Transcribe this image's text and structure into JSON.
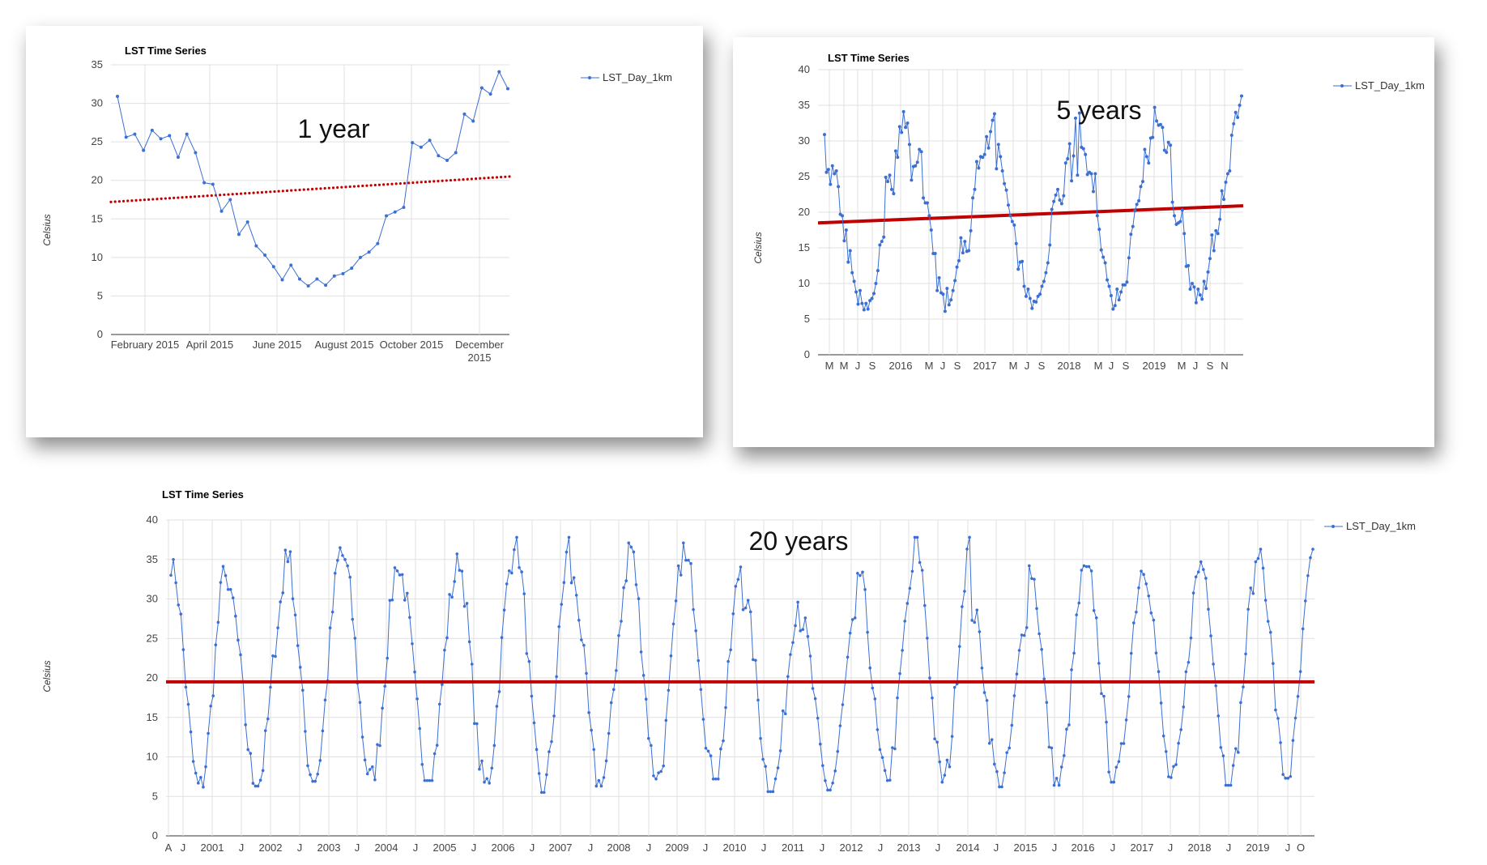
{
  "charts": [
    {
      "title": "LST Time Series",
      "ylabel": "Celsius",
      "legend": "LST_Day_1km",
      "annotation": "1 year",
      "yticks": [
        "0",
        "5",
        "10",
        "15",
        "20",
        "25",
        "30",
        "35"
      ],
      "xticks": [
        "February 2015",
        "April 2015",
        "June 2015",
        "August 2015",
        "October 2015",
        "December 2015"
      ]
    },
    {
      "title": "LST Time Series",
      "ylabel": "Celsius",
      "legend": "LST_Day_1km",
      "annotation": "5 years",
      "yticks": [
        "0",
        "5",
        "10",
        "15",
        "20",
        "25",
        "30",
        "35",
        "40"
      ],
      "xticks": [
        "M",
        "M",
        "J",
        "S",
        "2016",
        "M",
        "J",
        "S",
        "2017",
        "M",
        "J",
        "S",
        "2018",
        "M",
        "J",
        "S",
        "2019",
        "M",
        "J",
        "S",
        "N"
      ]
    },
    {
      "title": "LST Time Series",
      "ylabel": "Celsius",
      "legend": "LST_Day_1km",
      "annotation": "20 years",
      "yticks": [
        "0",
        "5",
        "10",
        "15",
        "20",
        "25",
        "30",
        "35",
        "40"
      ],
      "xticks": [
        "A",
        "J",
        "2001",
        "J",
        "2002",
        "J",
        "2003",
        "J",
        "2004",
        "J",
        "2005",
        "J",
        "2006",
        "J",
        "2007",
        "J",
        "2008",
        "J",
        "2009",
        "J",
        "2010",
        "J",
        "2011",
        "J",
        "2012",
        "J",
        "2013",
        "J",
        "2014",
        "J",
        "2015",
        "J",
        "2016",
        "J",
        "2017",
        "J",
        "2018",
        "J",
        "2019",
        "J",
        "O"
      ]
    }
  ],
  "chart_data": [
    {
      "type": "line",
      "title": "LST Time Series",
      "ylabel": "Celsius",
      "ylim": [
        0,
        35
      ],
      "x_start": "2015-01-01",
      "x_end": "2015-12-31",
      "series": [
        {
          "name": "LST_Day_1km",
          "values": [
            30.9,
            25.6,
            26.0,
            23.9,
            26.5,
            25.4,
            25.8,
            23.0,
            26.0,
            23.6,
            19.7,
            19.5,
            16.0,
            17.5,
            13.0,
            14.6,
            11.5,
            10.3,
            8.8,
            7.1,
            9.0,
            7.2,
            6.3,
            7.2,
            6.4,
            7.6,
            7.9,
            8.6,
            10.0,
            10.7,
            11.8,
            15.4,
            15.9,
            16.5,
            24.9,
            24.3,
            25.2,
            23.2,
            22.6,
            23.6,
            28.6,
            27.7,
            32.0,
            31.2,
            34.1,
            31.9
          ]
        },
        {
          "name": "trend",
          "values": [
            17.2,
            20.5
          ]
        }
      ]
    },
    {
      "type": "line",
      "title": "LST Time Series",
      "ylabel": "Celsius",
      "ylim": [
        0,
        40
      ],
      "x_start": "2015-01-01",
      "x_end": "2019-12-31",
      "series": [
        {
          "name": "LST_Day_1km",
          "values": [
            30.9,
            25.6,
            26.0,
            23.9,
            26.5,
            25.4,
            25.8,
            23.6,
            19.7,
            19.5,
            16.0,
            17.5,
            13.0,
            14.6,
            11.5,
            10.3,
            8.8,
            7.1,
            9.0,
            7.2,
            6.3,
            7.2,
            6.4,
            7.6,
            7.9,
            8.6,
            10.0,
            11.8,
            15.4,
            15.9,
            16.5,
            24.9,
            24.3,
            25.2,
            23.2,
            22.6,
            28.6,
            27.7,
            32.0,
            31.2,
            34.1,
            31.9,
            32.5,
            29.5,
            24.5,
            26.4,
            26.5,
            27.0,
            28.8,
            28.5,
            22.0,
            21.3,
            21.3,
            19.5,
            17.5,
            14.2,
            14.2,
            9.0,
            10.8,
            8.7,
            8.5,
            6.1,
            9.3,
            7.0,
            7.7,
            9.0,
            10.4,
            12.3,
            13.2,
            16.4,
            14.3,
            15.9,
            14.5,
            14.6,
            17.4,
            22.0,
            23.2,
            27.1,
            26.2,
            27.8,
            27.7,
            28.1,
            30.6,
            29.0,
            31.3,
            32.9,
            33.8,
            26.1,
            29.5,
            27.8,
            25.8,
            24.0,
            23.1,
            21.0,
            19.5,
            18.7,
            18.2,
            15.6,
            12.0,
            13.0,
            13.1,
            9.6,
            8.2,
            9.2,
            7.9,
            6.5,
            7.5,
            7.4,
            8.2,
            8.5,
            9.6,
            10.3,
            11.5,
            12.9,
            15.4,
            20.4,
            21.5,
            22.4,
            23.2,
            21.7,
            21.2,
            22.3,
            26.9,
            27.5,
            29.6,
            24.4,
            27.9,
            33.2,
            25.2,
            33.9,
            29.1,
            28.9,
            28.1,
            25.3,
            25.6,
            25.4,
            22.9,
            25.4,
            19.5,
            17.6,
            14.7,
            13.7,
            12.9,
            10.5,
            9.6,
            8.3,
            6.4,
            6.9,
            9.2,
            7.7,
            8.8,
            9.8,
            9.8,
            10.2,
            13.6,
            16.9,
            18.0,
            20.2,
            21.1,
            21.6,
            23.6,
            24.3,
            28.8,
            27.8,
            26.9,
            30.4,
            30.5,
            34.7,
            32.8,
            32.2,
            32.3,
            31.9,
            28.7,
            28.4,
            29.8,
            29.4,
            21.4,
            19.5,
            18.3,
            18.5,
            18.7,
            20.3,
            17.0,
            12.4,
            12.5,
            9.2,
            10.0,
            9.5,
            7.3,
            9.2,
            8.4,
            7.8,
            10.3,
            9.3,
            11.6,
            13.5,
            16.8,
            14.6,
            17.4,
            17.0,
            19.0,
            23.0,
            21.8,
            24.2,
            25.4,
            25.8,
            30.8,
            32.4,
            34.0,
            33.3,
            35.0,
            36.3
          ]
        },
        {
          "name": "trend",
          "values": [
            18.5,
            20.9
          ]
        }
      ]
    },
    {
      "type": "line",
      "title": "LST Time Series",
      "ylabel": "Celsius",
      "ylim": [
        0,
        40
      ],
      "x_start": "2000-02-26",
      "x_end": "2019-12-31",
      "series": [
        {
          "name": "LST_Day_1km",
          "annual_peaks": [
            35.0,
            31.2,
            36.5,
            35.5,
            33.2,
            35.7,
            37.8,
            32.7,
            37.1,
            34.9,
            30.4,
            27.6,
            33.5,
            37.8,
            28.6,
            34.2,
            34.1,
            34.2,
            34.7,
            36.3
          ]
        },
        {
          "name": "LST_Day_1km_annual_minimums",
          "values": [
            6.0,
            6.3,
            6.9,
            7.1,
            7.0,
            6.4,
            5.5,
            6.3,
            7.2,
            7.2,
            5.6,
            5.8,
            7.0,
            6.8,
            6.2,
            6.4,
            6.8,
            6.8,
            6.4,
            7.3
          ]
        },
        {
          "name": "trend",
          "values": [
            19.5,
            19.5
          ]
        }
      ]
    }
  ]
}
